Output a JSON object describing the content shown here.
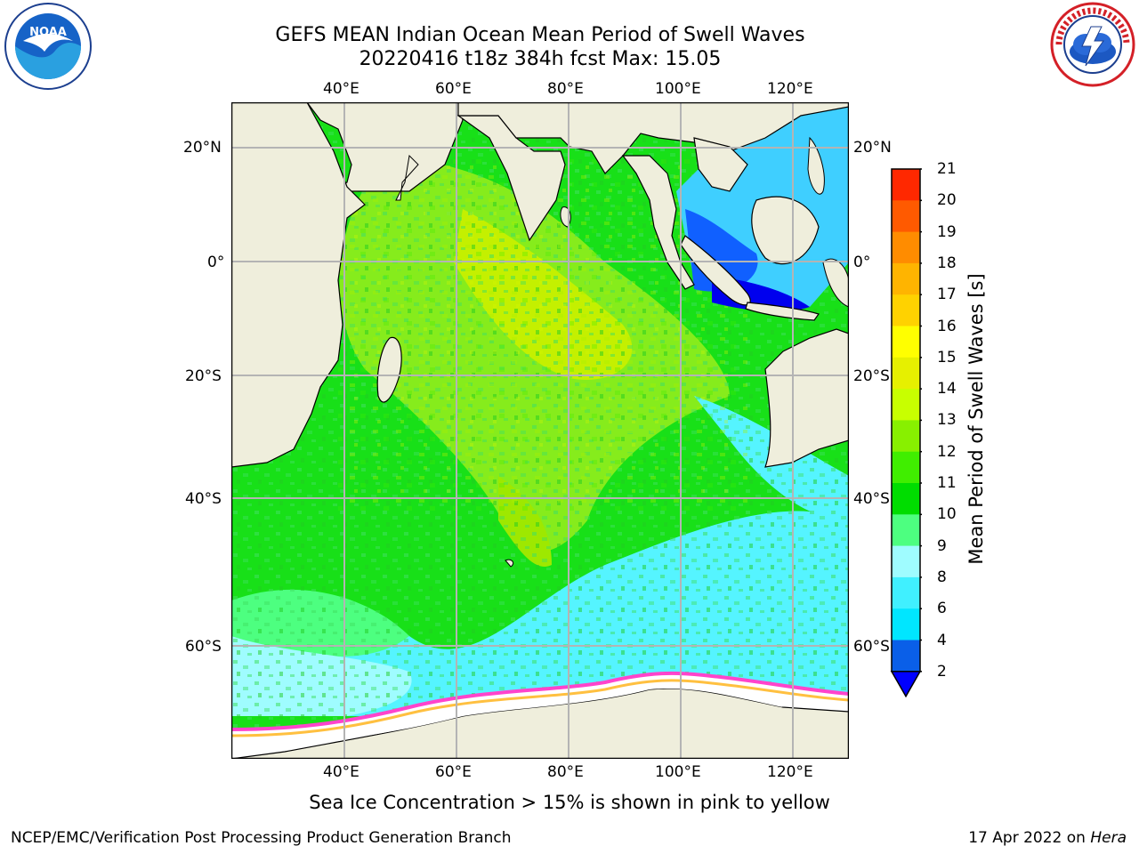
{
  "title": {
    "line1": "GEFS MEAN Indian Ocean Mean Period of Swell Waves",
    "line2": "20220416 t18z 384h fcst   Max: 15.05"
  },
  "map": {
    "region": "Indian Ocean",
    "lon_range": [
      20,
      129
    ],
    "lat_range": [
      -73,
      28
    ],
    "lon_ticks": [
      "40°E",
      "60°E",
      "80°E",
      "100°E",
      "120°E"
    ],
    "lat_ticks": [
      "20°N",
      "0°",
      "20°S",
      "40°S",
      "60°S"
    ],
    "colors": {
      "land": "#efeedc",
      "ice": "#ffffff",
      "grid": "#b4b4b4"
    }
  },
  "colorbar": {
    "label": "Mean Period of Swell Waves [s]",
    "levels": [
      "2",
      "4",
      "6",
      "8",
      "9",
      "10",
      "11",
      "12",
      "13",
      "14",
      "15",
      "16",
      "17",
      "18",
      "19",
      "20",
      "21"
    ],
    "colors": [
      "#0a5fe8",
      "#00e6ff",
      "#40f0ff",
      "#9ffcff",
      "#4dff80",
      "#00dd00",
      "#40ee00",
      "#88f000",
      "#c8ff00",
      "#e6f000",
      "#ffff00",
      "#ffd200",
      "#ffb400",
      "#ff8c00",
      "#ff5a00",
      "#ff2800"
    ],
    "under_color": "#0000ff"
  },
  "note": "Sea Ice Concentration > 15% is shown in pink to yellow",
  "footer": {
    "left": "NCEP/EMC/Verification Post Processing Product Generation Branch",
    "date": "17 Apr 2022 on ",
    "machine": "Hera"
  },
  "logos": {
    "left": "noaa-logo",
    "right": "nws-logo"
  }
}
